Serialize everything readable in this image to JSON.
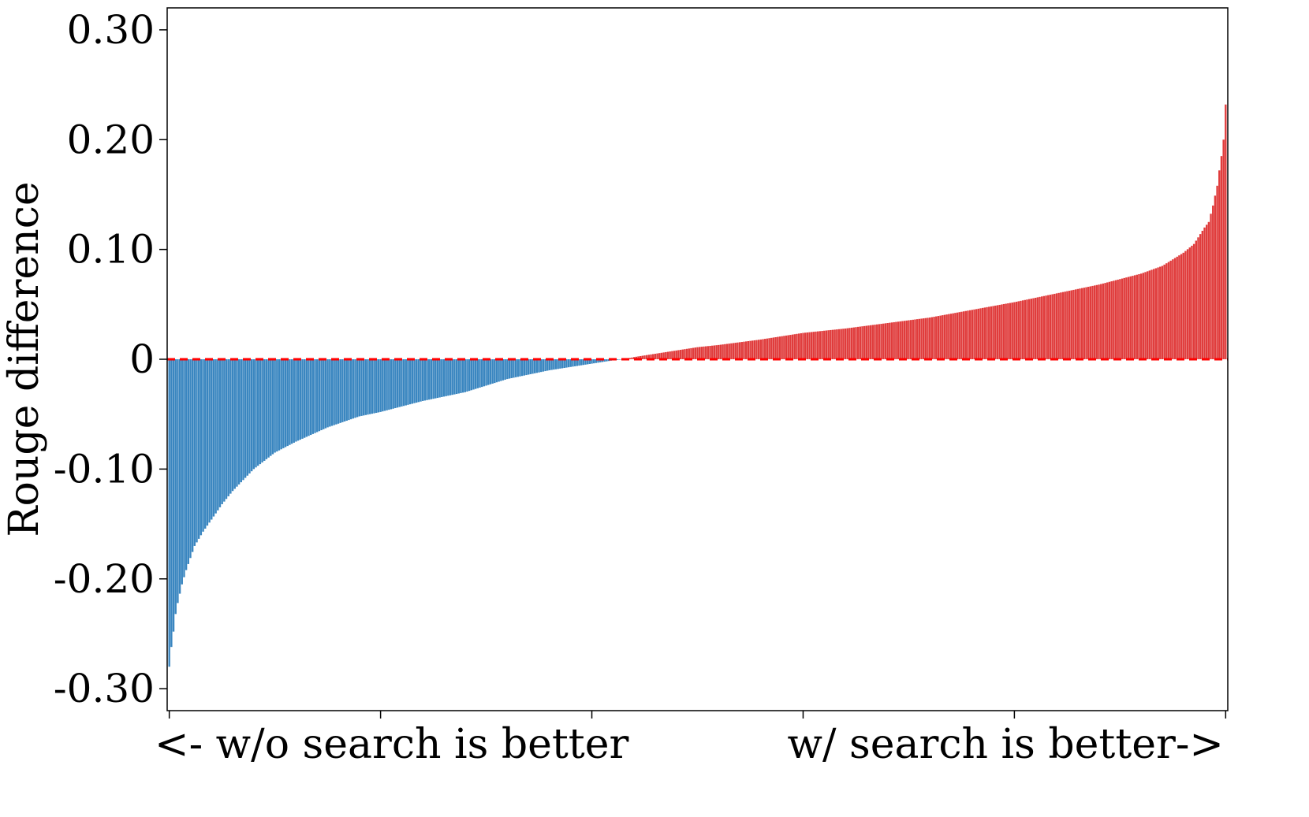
{
  "chart_data": {
    "type": "bar",
    "title": "",
    "ylabel": "Rouge difference",
    "xlabel": "",
    "x_captions": {
      "left": "<- w/o search is better",
      "right": "w/ search is better->"
    },
    "ylim": [
      -0.32,
      0.32
    ],
    "yticks": [
      0.3,
      0.2,
      0.1,
      0,
      -0.1,
      -0.2,
      -0.3
    ],
    "ytick_labels": [
      "0.30",
      "0.20",
      "0.10",
      "0",
      "-0.10",
      "-0.20",
      "-0.30"
    ],
    "xlim": [
      -1,
      501
    ],
    "xticks": [
      0,
      100,
      200,
      300,
      400,
      500
    ],
    "grid": false,
    "colors": {
      "negative": "#3a86c0",
      "positive": "#e03c3c",
      "zero_line": "#ff0000"
    },
    "reference_line": {
      "y": 0,
      "style": "dashed"
    },
    "series": [
      {
        "count": 501,
        "sorted": "ascending",
        "profile": [
          [
            0,
            -0.28
          ],
          [
            1,
            -0.262
          ],
          [
            2,
            -0.248
          ],
          [
            3,
            -0.232
          ],
          [
            4,
            -0.222
          ],
          [
            6,
            -0.205
          ],
          [
            8,
            -0.192
          ],
          [
            12,
            -0.17
          ],
          [
            16,
            -0.157
          ],
          [
            20,
            -0.146
          ],
          [
            25,
            -0.132
          ],
          [
            30,
            -0.12
          ],
          [
            35,
            -0.11
          ],
          [
            40,
            -0.1
          ],
          [
            50,
            -0.085
          ],
          [
            60,
            -0.075
          ],
          [
            75,
            -0.062
          ],
          [
            90,
            -0.052
          ],
          [
            100,
            -0.048
          ],
          [
            120,
            -0.038
          ],
          [
            140,
            -0.03
          ],
          [
            160,
            -0.018
          ],
          [
            180,
            -0.01
          ],
          [
            200,
            -0.004
          ],
          [
            210,
            -0.001
          ],
          [
            215,
            0.0
          ],
          [
            220,
            0.002
          ],
          [
            240,
            0.008
          ],
          [
            250,
            0.011
          ],
          [
            260,
            0.013
          ],
          [
            280,
            0.018
          ],
          [
            300,
            0.024
          ],
          [
            320,
            0.028
          ],
          [
            340,
            0.033
          ],
          [
            360,
            0.038
          ],
          [
            380,
            0.045
          ],
          [
            400,
            0.052
          ],
          [
            420,
            0.06
          ],
          [
            440,
            0.068
          ],
          [
            460,
            0.078
          ],
          [
            470,
            0.085
          ],
          [
            480,
            0.097
          ],
          [
            485,
            0.105
          ],
          [
            490,
            0.12
          ],
          [
            492,
            0.125
          ],
          [
            494,
            0.14
          ],
          [
            496,
            0.158
          ],
          [
            497,
            0.172
          ],
          [
            498,
            0.185
          ],
          [
            499,
            0.2
          ],
          [
            500,
            0.232
          ]
        ]
      }
    ]
  }
}
